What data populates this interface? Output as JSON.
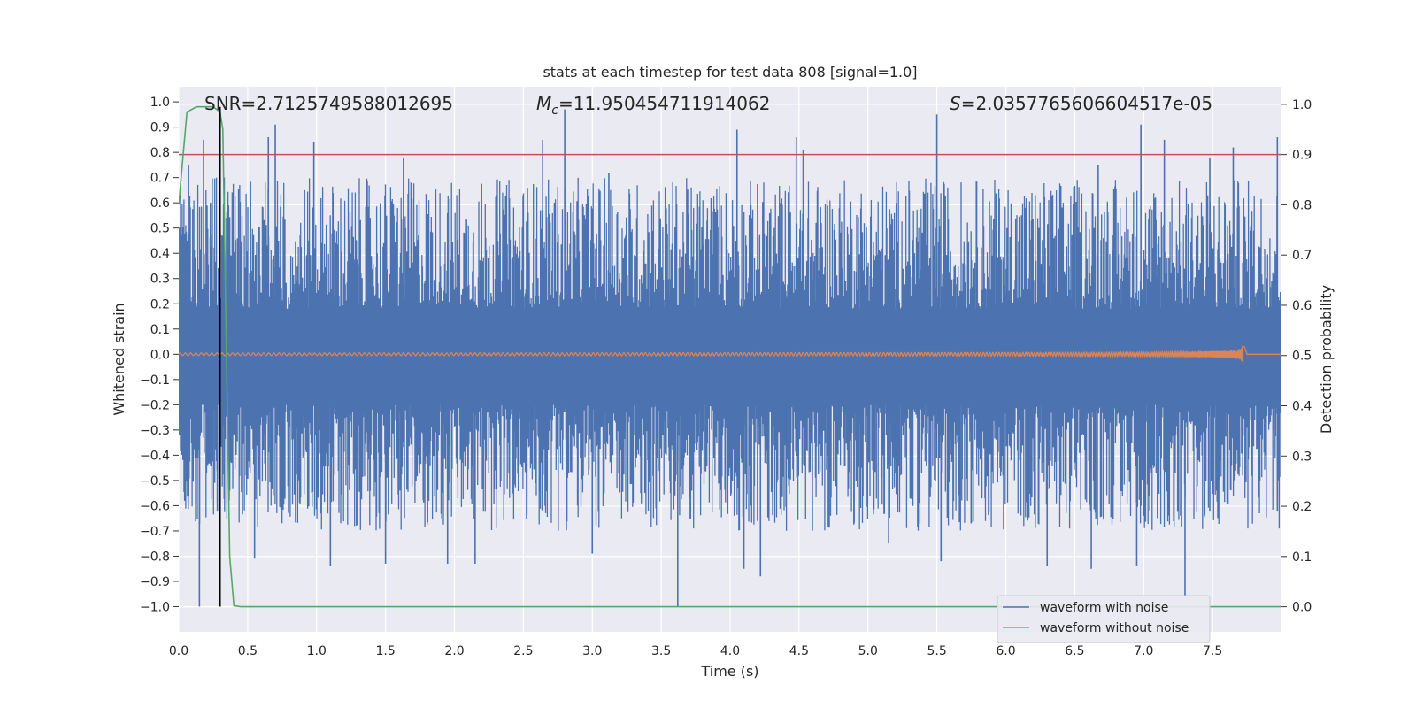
{
  "chart_data": {
    "type": "line",
    "title": "stats at each timestep for test data 808 [signal=1.0]",
    "xlabel": "Time (s)",
    "ylabel": "Whitened strain",
    "y2label": "Detection probability",
    "xlim": [
      0.0,
      8.0
    ],
    "ylim": [
      -1.1,
      1.06
    ],
    "y2lim": [
      -0.05,
      1.035
    ],
    "xticks": [
      "0.0",
      "0.5",
      "1.0",
      "1.5",
      "2.0",
      "2.5",
      "3.0",
      "3.5",
      "4.0",
      "4.5",
      "5.0",
      "5.5",
      "6.0",
      "6.5",
      "7.0",
      "7.5"
    ],
    "yticks": [
      "1.0",
      "0.9",
      "0.8",
      "0.7",
      "0.6",
      "0.5",
      "0.4",
      "0.3",
      "0.2",
      "0.1",
      "0.0",
      "−0.1",
      "−0.2",
      "−0.3",
      "−0.4",
      "−0.5",
      "−0.6",
      "−0.7",
      "−0.8",
      "−0.9",
      "−1.0"
    ],
    "y2ticks": [
      "1.0",
      "0.9",
      "0.8",
      "0.7",
      "0.6",
      "0.5",
      "0.4",
      "0.3",
      "0.2",
      "0.1",
      "0.0"
    ],
    "grid": true,
    "legend_position": "lower-right",
    "annotations": {
      "snr": "SNR=2.7125749588012695",
      "mc_symbol": "M",
      "mc_sub": "c",
      "mc_value": "=11.950454711914062",
      "s_symbol": "S",
      "s_value": "=2.0357765606604517e-05"
    },
    "series": [
      {
        "name": "waveform with noise",
        "color": "#4c72b0",
        "description": "noisy strain, dense band roughly ±0.2 with spikes to ±1.0"
      },
      {
        "name": "waveform without noise",
        "color": "#dd8452",
        "description": "chirp signal growing in amplitude, merger at ~7.7 s with peak ~0.15"
      }
    ],
    "detection_probability": {
      "color": "#55a868",
      "x": [
        0.0,
        0.06,
        0.13,
        0.25,
        0.3,
        0.32,
        0.37,
        0.4,
        0.45,
        8.0
      ],
      "y": [
        0.8,
        0.985,
        0.995,
        0.995,
        0.985,
        0.95,
        0.1,
        0.002,
        0.0,
        0.0
      ]
    },
    "threshold": {
      "y": 0.9,
      "color": "#c44e52"
    },
    "marker_line": {
      "x": 0.3,
      "color": "#000000"
    },
    "noise_spikes": {
      "up": [
        [
          0.07,
          0.75
        ],
        [
          0.18,
          0.85
        ],
        [
          0.23,
          0.6
        ],
        [
          0.33,
          0.7
        ],
        [
          0.65,
          0.86
        ],
        [
          0.7,
          0.91
        ],
        [
          0.98,
          0.84
        ],
        [
          1.63,
          0.78
        ],
        [
          2.64,
          0.85
        ],
        [
          2.8,
          0.97
        ],
        [
          3.12,
          0.72
        ],
        [
          4.05,
          0.89
        ],
        [
          4.48,
          0.86
        ],
        [
          4.53,
          0.81
        ],
        [
          5.5,
          0.95
        ],
        [
          6.67,
          0.75
        ],
        [
          6.98,
          0.91
        ],
        [
          7.15,
          0.85
        ],
        [
          7.48,
          0.78
        ],
        [
          7.65,
          0.82
        ],
        [
          7.97,
          0.86
        ]
      ],
      "down": [
        [
          0.15,
          -1.0
        ],
        [
          0.28,
          -0.62
        ],
        [
          0.55,
          -0.81
        ],
        [
          1.1,
          -0.84
        ],
        [
          1.5,
          -0.83
        ],
        [
          1.95,
          -0.83
        ],
        [
          2.15,
          -0.83
        ],
        [
          3.0,
          -0.79
        ],
        [
          3.62,
          -1.0
        ],
        [
          4.1,
          -0.85
        ],
        [
          4.22,
          -0.88
        ],
        [
          5.15,
          -0.75
        ],
        [
          5.53,
          -0.82
        ],
        [
          6.3,
          -0.84
        ],
        [
          6.62,
          -0.85
        ],
        [
          6.95,
          -0.84
        ],
        [
          7.3,
          -0.96
        ],
        [
          7.48,
          -0.62
        ],
        [
          7.97,
          -0.62
        ]
      ]
    }
  }
}
